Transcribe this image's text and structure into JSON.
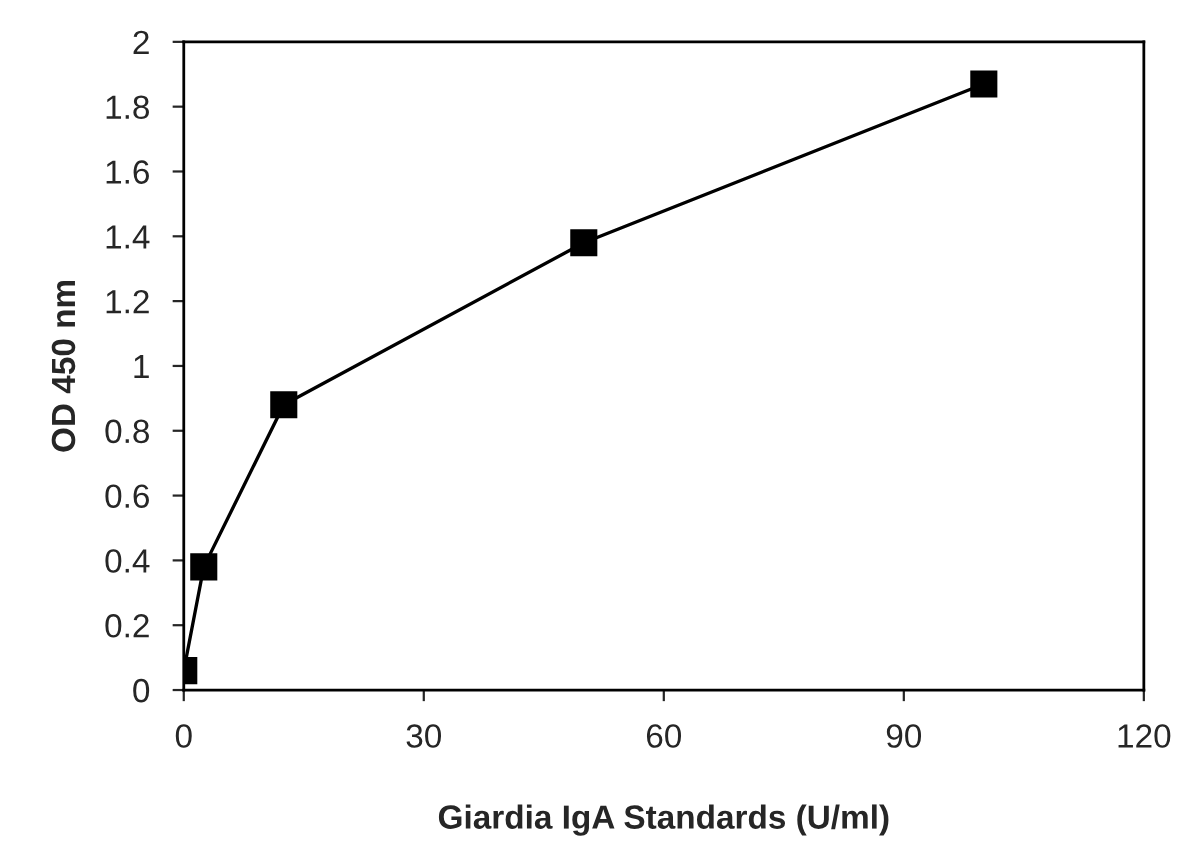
{
  "chart_data": {
    "type": "line",
    "xlabel": "Giardia IgA Standards (U/ml)",
    "ylabel": "OD 450 nm",
    "x": [
      0,
      2.5,
      12.5,
      50,
      100
    ],
    "series": [
      {
        "color": "#000000",
        "values": [
          0.06,
          0.38,
          0.88,
          1.38,
          1.87
        ]
      }
    ],
    "xlim": [
      0,
      120
    ],
    "xticks": [
      0,
      30,
      60,
      90,
      120
    ],
    "ylim": [
      0,
      2
    ],
    "yticks": [
      0,
      0.2,
      0.4,
      0.6,
      0.8,
      1,
      1.2,
      1.4,
      1.6,
      1.8,
      2
    ],
    "marker": "square",
    "line_style": "solid",
    "grid": false,
    "legend": false
  }
}
